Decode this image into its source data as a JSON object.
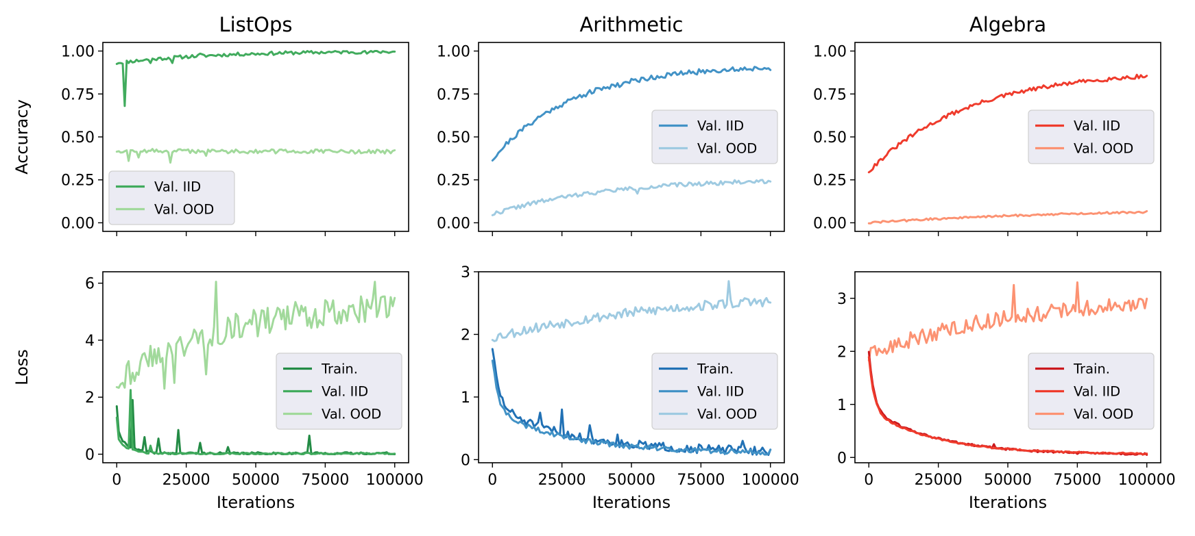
{
  "colors": {
    "green_dark": "#238b45",
    "green_mid": "#41ab5d",
    "green_light": "#a1d99b",
    "blue_dark": "#2171b5",
    "blue_mid": "#4292c6",
    "blue_light": "#9ecae1",
    "red_dark": "#cb181d",
    "red_mid": "#ef3b2c",
    "red_light": "#fc9272"
  },
  "chart_data": [
    {
      "type": "line",
      "row": 0,
      "col": 0,
      "title": "ListOps",
      "xlabel": "",
      "ylabel": "Accuracy",
      "xlim": [
        -5000,
        105000
      ],
      "ylim": [
        -0.05,
        1.05
      ],
      "xticks": [
        0,
        25000,
        50000,
        75000,
        100000
      ],
      "xtick_labels": [],
      "yticks": [
        0,
        0.25,
        0.5,
        0.75,
        1.0
      ],
      "ytick_labels": [
        "0.00",
        "0.25",
        "0.50",
        "0.75",
        "1.00"
      ],
      "legend_position": "lower-left",
      "series": [
        {
          "name": "Val. IID",
          "color": "#41ab5d",
          "kind": "acc",
          "start": 0.93,
          "end": 1.0,
          "rate": 3,
          "noise": 0.01,
          "seed": 11,
          "spikes": [
            [
              3000,
              0.68
            ],
            [
              1000,
              0.93
            ],
            [
              12000,
              0.93
            ],
            [
              20000,
              0.93
            ],
            [
              30000,
              0.985
            ],
            [
              52000,
              0.985
            ],
            [
              90000,
              0.985
            ]
          ]
        },
        {
          "name": "Val. OOD",
          "color": "#a1d99b",
          "kind": "acc",
          "start": 0.42,
          "end": 0.41,
          "rate": 1,
          "noise": 0.012,
          "seed": 12,
          "spikes": [
            [
              4000,
              0.36
            ],
            [
              19000,
              0.35
            ],
            [
              8000,
              0.38
            ],
            [
              32000,
              0.39
            ]
          ]
        }
      ]
    },
    {
      "type": "line",
      "row": 0,
      "col": 1,
      "title": "Arithmetic",
      "xlabel": "",
      "ylabel": "",
      "xlim": [
        -5000,
        105000
      ],
      "ylim": [
        -0.05,
        1.05
      ],
      "xticks": [
        0,
        25000,
        50000,
        75000,
        100000
      ],
      "xtick_labels": [],
      "yticks": [
        0,
        0.25,
        0.5,
        0.75,
        1.0
      ],
      "ytick_labels": [
        "0.00",
        "0.25",
        "0.50",
        "0.75",
        "1.00"
      ],
      "legend_position": "center-right",
      "series": [
        {
          "name": "Val. IID",
          "color": "#4292c6",
          "kind": "acc",
          "start": 0.37,
          "end": 0.92,
          "rate": 3.5,
          "noise": 0.015,
          "seed": 21,
          "spikes": [
            [
              46000,
              0.79
            ]
          ]
        },
        {
          "name": "Val. OOD",
          "color": "#9ecae1",
          "kind": "acc",
          "start": 0.05,
          "end": 0.26,
          "rate": 2.5,
          "noise": 0.012,
          "seed": 22,
          "spikes": [
            [
              52000,
              0.17
            ]
          ]
        }
      ]
    },
    {
      "type": "line",
      "row": 0,
      "col": 2,
      "title": "Algebra",
      "xlabel": "",
      "ylabel": "",
      "xlim": [
        -5000,
        105000
      ],
      "ylim": [
        -0.05,
        1.05
      ],
      "xticks": [
        0,
        25000,
        50000,
        75000,
        100000
      ],
      "xtick_labels": [],
      "yticks": [
        0,
        0.25,
        0.5,
        0.75,
        1.0
      ],
      "ytick_labels": [
        "0.00",
        "0.25",
        "0.50",
        "0.75",
        "1.00"
      ],
      "legend_position": "center-right",
      "series": [
        {
          "name": "Val. IID",
          "color": "#ef3b2c",
          "kind": "acc",
          "start": 0.3,
          "end": 0.89,
          "rate": 2.8,
          "noise": 0.012,
          "seed": 31,
          "spikes": []
        },
        {
          "name": "Val. OOD",
          "color": "#fc9272",
          "kind": "acc",
          "start": 0.0,
          "end": 0.09,
          "rate": 1.2,
          "noise": 0.006,
          "seed": 32,
          "spikes": []
        }
      ]
    },
    {
      "type": "line",
      "row": 1,
      "col": 0,
      "title": "",
      "xlabel": "Iterations",
      "ylabel": "Loss",
      "xlim": [
        -5000,
        105000
      ],
      "ylim": [
        -0.3,
        6.4
      ],
      "xticks": [
        0,
        25000,
        50000,
        75000,
        100000
      ],
      "xtick_labels": [
        "0",
        "25000",
        "50000",
        "75000",
        "100000"
      ],
      "yticks": [
        0,
        2,
        4,
        6
      ],
      "ytick_labels": [
        "0",
        "2",
        "4",
        "6"
      ],
      "legend_position": "center-right",
      "series": [
        {
          "name": "Train.",
          "color": "#238b45",
          "kind": "loss",
          "start": 1.7,
          "end": 0.03,
          "rate": 40,
          "noise": 0.04,
          "seed": 41,
          "spikes": [
            [
              6000,
              1.9
            ],
            [
              10000,
              0.6
            ],
            [
              15000,
              0.55
            ],
            [
              22000,
              0.85
            ],
            [
              30000,
              0.4
            ],
            [
              69000,
              0.65
            ],
            [
              40000,
              0.25
            ]
          ]
        },
        {
          "name": "Val. IID",
          "color": "#41ab5d",
          "kind": "loss",
          "start": 1.3,
          "end": 0.02,
          "rate": 45,
          "noise": 0.03,
          "seed": 42,
          "spikes": [
            [
              5000,
              2.25
            ],
            [
              12000,
              0.3
            ]
          ]
        },
        {
          "name": "Val. OOD",
          "color": "#a1d99b",
          "kind": "lossup",
          "start": 2.6,
          "end": 5.4,
          "rate": 2.5,
          "noise": 0.5,
          "seed": 43,
          "spikes": [
            [
              36000,
              6.05
            ],
            [
              32000,
              2.8
            ],
            [
              17000,
              2.3
            ],
            [
              93000,
              6.05
            ],
            [
              21000,
              2.5
            ]
          ]
        }
      ]
    },
    {
      "type": "line",
      "row": 1,
      "col": 1,
      "title": "",
      "xlabel": "Iterations",
      "ylabel": "",
      "xlim": [
        -5000,
        105000
      ],
      "ylim": [
        -0.05,
        3.0
      ],
      "xticks": [
        0,
        25000,
        50000,
        75000,
        100000
      ],
      "xtick_labels": [
        "0",
        "25000",
        "50000",
        "75000",
        "100000"
      ],
      "yticks": [
        0,
        1,
        2,
        3
      ],
      "ytick_labels": [
        "0",
        "1",
        "2",
        "3"
      ],
      "legend_position": "center-right",
      "series": [
        {
          "name": "Val. OOD",
          "color": "#9ecae1",
          "kind": "lossup",
          "start": 1.95,
          "end": 2.7,
          "rate": 1.5,
          "noise": 0.08,
          "seed": 53,
          "spikes": [
            [
              85000,
              2.85
            ]
          ]
        },
        {
          "name": "Train.",
          "color": "#2171b5",
          "kind": "loss",
          "start": 1.8,
          "end": 0.12,
          "rate": 6,
          "noise": 0.07,
          "seed": 51,
          "spikes": [
            [
              17000,
              0.75
            ],
            [
              25000,
              0.8
            ],
            [
              35000,
              0.55
            ],
            [
              45000,
              0.4
            ],
            [
              90000,
              0.3
            ]
          ]
        },
        {
          "name": "Val. IID",
          "color": "#4292c6",
          "kind": "loss",
          "start": 1.6,
          "end": 0.1,
          "rate": 6,
          "noise": 0.04,
          "seed": 52,
          "spikes": []
        }
      ]
    },
    {
      "type": "line",
      "row": 1,
      "col": 2,
      "title": "",
      "xlabel": "Iterations",
      "ylabel": "",
      "xlim": [
        -5000,
        105000
      ],
      "ylim": [
        -0.1,
        3.5
      ],
      "xticks": [
        0,
        25000,
        50000,
        75000,
        100000
      ],
      "xtick_labels": [
        "0",
        "25000",
        "50000",
        "75000",
        "100000"
      ],
      "yticks": [
        0,
        1,
        2,
        3
      ],
      "ytick_labels": [
        "0",
        "1",
        "2",
        "3"
      ],
      "legend_position": "center-right",
      "series": [
        {
          "name": "Val. OOD",
          "color": "#fc9272",
          "kind": "lossup",
          "start": 1.9,
          "end": 3.0,
          "rate": 2.2,
          "noise": 0.15,
          "seed": 63,
          "spikes": [
            [
              75000,
              3.3
            ],
            [
              52000,
              3.25
            ]
          ]
        },
        {
          "name": "Train.",
          "color": "#cb181d",
          "kind": "loss",
          "start": 2.0,
          "end": 0.05,
          "rate": 7,
          "noise": 0.02,
          "seed": 61,
          "spikes": [
            [
              45000,
              0.25
            ]
          ]
        },
        {
          "name": "Val. IID",
          "color": "#ef3b2c",
          "kind": "loss",
          "start": 1.9,
          "end": 0.06,
          "rate": 7,
          "noise": 0.015,
          "seed": 62,
          "spikes": []
        }
      ]
    }
  ]
}
